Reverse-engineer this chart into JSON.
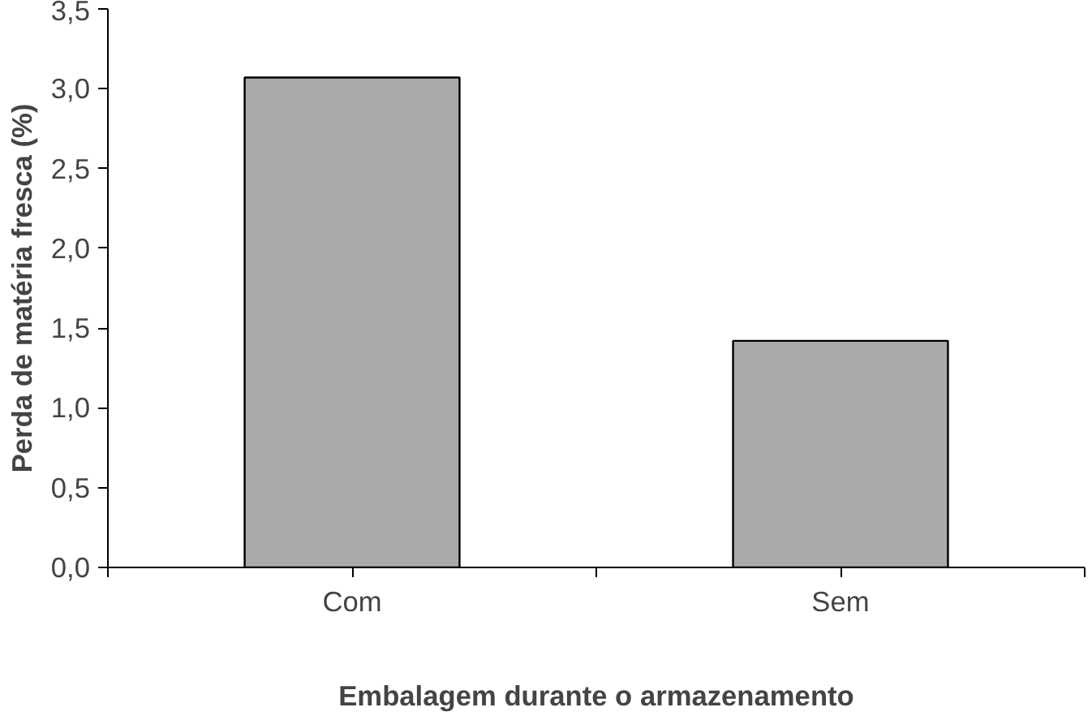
{
  "chart_data": {
    "type": "bar",
    "xlabel": "Embalagem durante o armazenamento",
    "ylabel": "Perda de matéria fresca (%)",
    "categories": [
      "Com",
      "Sem"
    ],
    "values": [
      3.07,
      1.42
    ],
    "color": "#aaaaaa",
    "ylim": [
      0,
      3.5
    ],
    "yticks": [
      {
        "value": 0,
        "label": "0,0"
      },
      {
        "value": 0.5,
        "label": "0,5"
      },
      {
        "value": 1,
        "label": "1,0"
      },
      {
        "value": 1.5,
        "label": "1,5"
      },
      {
        "value": 2,
        "label": "2,0"
      },
      {
        "value": 2.5,
        "label": "2,5"
      },
      {
        "value": 3,
        "label": "3,0"
      },
      {
        "value": 3.5,
        "label": "3,5"
      }
    ],
    "grid": false
  }
}
